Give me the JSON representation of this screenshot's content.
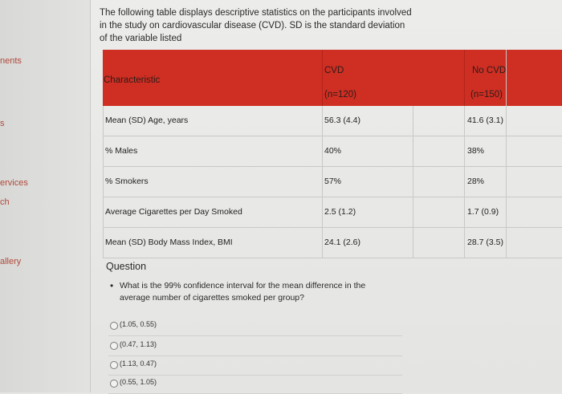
{
  "sidebar": {
    "items": [
      {
        "label": "nents"
      },
      {
        "label": "s"
      },
      {
        "label": "ervices"
      },
      {
        "label": "ch"
      },
      {
        "label": "allery"
      }
    ]
  },
  "intro_text": "The following table displays descriptive statistics on the participants involved in the study on cardiovascular disease (CVD). SD is the standard deviation of the variable listed",
  "table": {
    "header": {
      "characteristic": "Characteristic",
      "cvd": "CVD",
      "cvd_n": "(n=120)",
      "no_cvd": "No CVD",
      "no_cvd_n": "(n=150)"
    },
    "rows": [
      {
        "label": "Mean (SD) Age, years",
        "cvd": "56.3 (4.4)",
        "no_cvd": "41.6 (3.1)"
      },
      {
        "label": "% Males",
        "cvd": "40%",
        "no_cvd": "38%"
      },
      {
        "label": "% Smokers",
        "cvd": "57%",
        "no_cvd": "28%"
      },
      {
        "label": "Average Cigarettes per Day Smoked",
        "cvd": "2.5 (1.2)",
        "no_cvd": "1.7 (0.9)"
      },
      {
        "label": "Mean (SD) Body Mass Index, BMI",
        "cvd": "24.1 (2.6)",
        "no_cvd": "28.7 (3.5)"
      }
    ]
  },
  "question": {
    "title": "Question",
    "prompt": "What is the 99% confidence interval for the mean difference in the average number of cigarettes smoked per group?",
    "options": [
      {
        "label": "(1.05, 0.55)"
      },
      {
        "label": "(0.47, 1.13)"
      },
      {
        "label": "(1.13, 0.47)"
      },
      {
        "label": "(0.55, 1.05)"
      }
    ]
  },
  "colors": {
    "header_red": "#cf2e22",
    "sidebar_text": "#b04a3a"
  }
}
